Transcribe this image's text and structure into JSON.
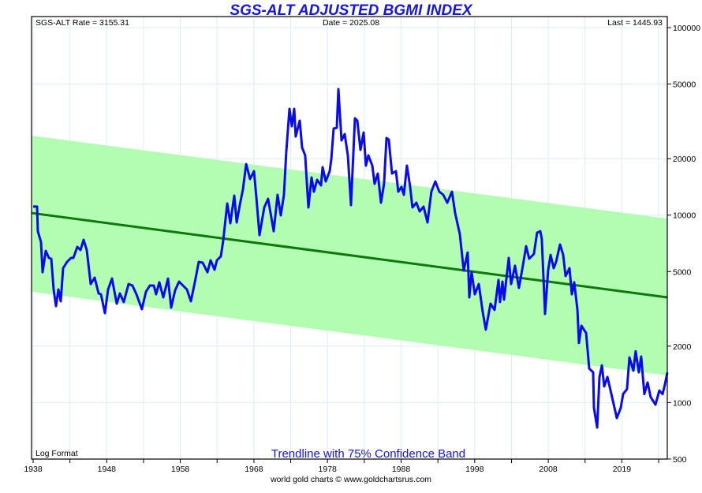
{
  "chart_data": {
    "type": "line",
    "title": "SGS-ALT ADJUSTED BGMI INDEX",
    "header": {
      "rate": "SGS-ALT Rate = 3155.31",
      "date": "Date = 2025.08",
      "last": "Last = 1445.93"
    },
    "scale_label": "Log Format",
    "annotation": "Trendline with 75% Confidence Band",
    "credit": "world gold charts © www.goldchartsrus.com",
    "x_tick_labels": [
      "1938",
      "1948",
      "1958",
      "1968",
      "1978",
      "1988",
      "1998",
      "2008",
      "2019"
    ],
    "y_tick_labels": [
      "100000",
      "50000",
      "20000",
      "10000",
      "5000",
      "2000",
      "1000",
      "500"
    ],
    "y_ticks": [
      100000,
      50000,
      20000,
      10000,
      5000,
      2000,
      1000,
      500
    ],
    "xlim": [
      1938,
      2025.08
    ],
    "ylim": [
      500,
      120000
    ],
    "yscale": "log",
    "grid": true,
    "colors": {
      "series": "#0a0af0",
      "trend": "#0b7a0b",
      "band": "#b3fdb3",
      "grid": "#dbeef8",
      "title": "#1414e6"
    },
    "trendline": {
      "x": [
        1938,
        2025.08
      ],
      "y": [
        10260,
        3640
      ]
    },
    "band_upper": {
      "x": [
        1938,
        2025.08
      ],
      "y": [
        26520,
        9590
      ]
    },
    "band_lower": {
      "x": [
        1938,
        2025.08
      ],
      "y": [
        3900,
        1395
      ]
    },
    "series": [
      {
        "name": "SGS-ALT Adjusted BGMI",
        "points": [
          [
            1938.0,
            11100
          ],
          [
            1938.54,
            11100
          ],
          [
            1938.65,
            8200
          ],
          [
            1939.08,
            7170
          ],
          [
            1939.3,
            4960
          ],
          [
            1939.73,
            6450
          ],
          [
            1940.17,
            5910
          ],
          [
            1940.49,
            5850
          ],
          [
            1940.82,
            4010
          ],
          [
            1941.14,
            3270
          ],
          [
            1941.47,
            4010
          ],
          [
            1941.79,
            3470
          ],
          [
            1942.12,
            5210
          ],
          [
            1942.66,
            5630
          ],
          [
            1943.2,
            5910
          ],
          [
            1943.52,
            5910
          ],
          [
            1944.06,
            6770
          ],
          [
            1944.5,
            6510
          ],
          [
            1944.93,
            7380
          ],
          [
            1945.36,
            6510
          ],
          [
            1945.91,
            4290
          ],
          [
            1946.45,
            4640
          ],
          [
            1946.99,
            3820
          ],
          [
            1947.31,
            3780
          ],
          [
            1947.86,
            3000
          ],
          [
            1948.29,
            4010
          ],
          [
            1948.83,
            4590
          ],
          [
            1949.48,
            3370
          ],
          [
            1949.91,
            3820
          ],
          [
            1950.45,
            3440
          ],
          [
            1951.1,
            4290
          ],
          [
            1951.64,
            4210
          ],
          [
            1952.19,
            3780
          ],
          [
            1952.94,
            3150
          ],
          [
            1953.49,
            3900
          ],
          [
            1954.03,
            4210
          ],
          [
            1954.57,
            4210
          ],
          [
            1954.89,
            3780
          ],
          [
            1955.33,
            4380
          ],
          [
            1955.87,
            3640
          ],
          [
            1956.52,
            4590
          ],
          [
            1956.95,
            3210
          ],
          [
            1957.5,
            3970
          ],
          [
            1958.04,
            4420
          ],
          [
            1958.58,
            4210
          ],
          [
            1959.12,
            4010
          ],
          [
            1959.66,
            3470
          ],
          [
            1960.2,
            4380
          ],
          [
            1960.74,
            5630
          ],
          [
            1961.29,
            5570
          ],
          [
            1961.94,
            4960
          ],
          [
            1962.37,
            5740
          ],
          [
            1962.91,
            5110
          ],
          [
            1963.24,
            5740
          ],
          [
            1963.78,
            6030
          ],
          [
            1964.1,
            7310
          ],
          [
            1964.65,
            11530
          ],
          [
            1965.08,
            9050
          ],
          [
            1965.62,
            12700
          ],
          [
            1965.95,
            9140
          ],
          [
            1966.38,
            11310
          ],
          [
            1966.81,
            13730
          ],
          [
            1967.25,
            18720
          ],
          [
            1967.79,
            15570
          ],
          [
            1968.33,
            17150
          ],
          [
            1968.65,
            12460
          ],
          [
            1969.08,
            7820
          ],
          [
            1969.73,
            10990
          ],
          [
            1970.27,
            12220
          ],
          [
            1971.03,
            8210
          ],
          [
            1971.57,
            12830
          ],
          [
            1972.01,
            9970
          ],
          [
            1972.44,
            12830
          ],
          [
            1972.76,
            21640
          ],
          [
            1973.2,
            36860
          ],
          [
            1973.52,
            29800
          ],
          [
            1973.85,
            36860
          ],
          [
            1974.06,
            26270
          ],
          [
            1974.61,
            31890
          ],
          [
            1974.93,
            22930
          ],
          [
            1975.36,
            20820
          ],
          [
            1975.8,
            10990
          ],
          [
            1976.23,
            15880
          ],
          [
            1976.56,
            13330
          ],
          [
            1976.99,
            15420
          ],
          [
            1977.53,
            14410
          ],
          [
            1977.75,
            18010
          ],
          [
            1978.18,
            15120
          ],
          [
            1978.72,
            17150
          ],
          [
            1978.94,
            19830
          ],
          [
            1979.27,
            28940
          ],
          [
            1979.7,
            29220
          ],
          [
            1979.91,
            46960
          ],
          [
            1980.35,
            25020
          ],
          [
            1980.78,
            27050
          ],
          [
            1981.21,
            20820
          ],
          [
            1981.65,
            11310
          ],
          [
            1982.19,
            32830
          ],
          [
            1982.51,
            31890
          ],
          [
            1982.95,
            22280
          ],
          [
            1983.38,
            27570
          ],
          [
            1983.7,
            18360
          ],
          [
            1984.03,
            20820
          ],
          [
            1984.57,
            18360
          ],
          [
            1984.89,
            14690
          ],
          [
            1985.33,
            16660
          ],
          [
            1985.76,
            11640
          ],
          [
            1986.19,
            14690
          ],
          [
            1986.52,
            25760
          ],
          [
            1986.84,
            25270
          ],
          [
            1987.28,
            16660
          ],
          [
            1987.82,
            17150
          ],
          [
            1988.14,
            13330
          ],
          [
            1988.58,
            14130
          ],
          [
            1988.9,
            12830
          ],
          [
            1989.33,
            18360
          ],
          [
            1989.77,
            14130
          ],
          [
            1990.09,
            10990
          ],
          [
            1990.63,
            11640
          ],
          [
            1991.07,
            10470
          ],
          [
            1991.61,
            11090
          ],
          [
            1992.15,
            9140
          ],
          [
            1992.69,
            13330
          ],
          [
            1993.23,
            15120
          ],
          [
            1993.77,
            13330
          ],
          [
            1994.32,
            12830
          ],
          [
            1994.86,
            11640
          ],
          [
            1995.51,
            13330
          ],
          [
            1995.94,
            10260
          ],
          [
            1996.59,
            7900
          ],
          [
            1997.13,
            5060
          ],
          [
            1997.67,
            6320
          ],
          [
            1997.89,
            3640
          ],
          [
            1998.21,
            4960
          ],
          [
            1998.65,
            3780
          ],
          [
            1999.19,
            4290
          ],
          [
            1999.73,
            3060
          ],
          [
            2000.16,
            2450
          ],
          [
            2000.81,
            3370
          ],
          [
            2001.36,
            3120
          ],
          [
            2001.9,
            4510
          ],
          [
            2002.11,
            3440
          ],
          [
            2002.44,
            4420
          ],
          [
            2002.66,
            3540
          ],
          [
            2003.31,
            5910
          ],
          [
            2003.63,
            4290
          ],
          [
            2004.17,
            5370
          ],
          [
            2004.71,
            4090
          ],
          [
            2005.25,
            5370
          ],
          [
            2005.69,
            6830
          ],
          [
            2006.12,
            5850
          ],
          [
            2006.77,
            6200
          ],
          [
            2007.2,
            8060
          ],
          [
            2007.64,
            8210
          ],
          [
            2007.85,
            7460
          ],
          [
            2008.29,
            2970
          ],
          [
            2008.72,
            5060
          ],
          [
            2009.05,
            6140
          ],
          [
            2009.48,
            5210
          ],
          [
            2009.81,
            5630
          ],
          [
            2010.35,
            6970
          ],
          [
            2010.78,
            6140
          ],
          [
            2011.11,
            4730
          ],
          [
            2011.65,
            5210
          ],
          [
            2011.98,
            3780
          ],
          [
            2012.3,
            4380
          ],
          [
            2012.74,
            3120
          ],
          [
            2012.95,
            2080
          ],
          [
            2013.28,
            2570
          ],
          [
            2013.93,
            2350
          ],
          [
            2014.36,
            1520
          ],
          [
            2014.9,
            1450
          ],
          [
            2015.01,
            938
          ],
          [
            2015.45,
            736
          ],
          [
            2015.77,
            1370
          ],
          [
            2016.1,
            1580
          ],
          [
            2016.42,
            1220
          ],
          [
            2016.86,
            1370
          ],
          [
            2017.4,
            1110
          ],
          [
            2018.15,
            827
          ],
          [
            2018.69,
            938
          ],
          [
            2019.01,
            1110
          ],
          [
            2019.55,
            1180
          ],
          [
            2019.88,
            1740
          ],
          [
            2020.42,
            1480
          ],
          [
            2020.74,
            1880
          ],
          [
            2021.17,
            1450
          ],
          [
            2021.5,
            1760
          ],
          [
            2021.93,
            1110
          ],
          [
            2022.37,
            1280
          ],
          [
            2022.8,
            1070
          ],
          [
            2023.45,
            975
          ],
          [
            2023.99,
            1160
          ],
          [
            2024.43,
            1110
          ],
          [
            2024.75,
            1250
          ],
          [
            2025.08,
            1446
          ]
        ]
      }
    ]
  }
}
